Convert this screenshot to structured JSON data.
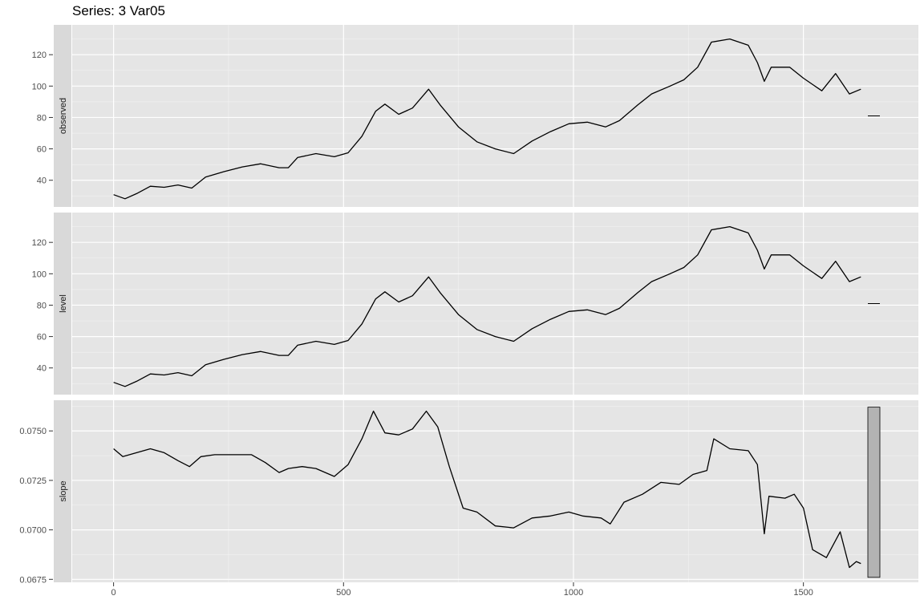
{
  "page_title": "Series: 3 Var05",
  "chart_data": {
    "type": "line",
    "title": "Series: 3 Var05",
    "xlabel": "",
    "ylabel": "",
    "x_range": [
      -90,
      1750
    ],
    "x_ticks": [
      0,
      500,
      1000,
      1500
    ],
    "x_tick_labels": [
      "0",
      "500",
      "1000",
      "1500"
    ],
    "grid": true,
    "line_color": "#000000",
    "panel_background": "#e5e5e5",
    "strip_background": "#d9d9d9",
    "panels": [
      {
        "name": "observed",
        "strip_label": "observed",
        "ylim": [
          23,
          139
        ],
        "y_ticks": [
          40,
          60,
          80,
          100,
          120
        ],
        "y_tick_labels": [
          "40",
          "60",
          "80",
          "100",
          "120"
        ],
        "series_points": [
          [
            0,
            30.8
          ],
          [
            25,
            28.2
          ],
          [
            50,
            31.5
          ],
          [
            80,
            36.2
          ],
          [
            110,
            35.5
          ],
          [
            140,
            37
          ],
          [
            170,
            35
          ],
          [
            200,
            42
          ],
          [
            240,
            45.5
          ],
          [
            280,
            48.5
          ],
          [
            320,
            50.5
          ],
          [
            360,
            48
          ],
          [
            380,
            48
          ],
          [
            400,
            54.5
          ],
          [
            440,
            57
          ],
          [
            480,
            55
          ],
          [
            510,
            57.5
          ],
          [
            540,
            68
          ],
          [
            570,
            84
          ],
          [
            590,
            88.5
          ],
          [
            620,
            82
          ],
          [
            650,
            86
          ],
          [
            685,
            98
          ],
          [
            710,
            88
          ],
          [
            750,
            74
          ],
          [
            790,
            64.5
          ],
          [
            830,
            60
          ],
          [
            870,
            57
          ],
          [
            910,
            65
          ],
          [
            950,
            71
          ],
          [
            990,
            76
          ],
          [
            1030,
            77
          ],
          [
            1070,
            74
          ],
          [
            1100,
            78
          ],
          [
            1140,
            88
          ],
          [
            1170,
            95
          ],
          [
            1210,
            100
          ],
          [
            1240,
            104
          ],
          [
            1270,
            112
          ],
          [
            1300,
            128
          ],
          [
            1340,
            130
          ],
          [
            1380,
            126
          ],
          [
            1400,
            115
          ],
          [
            1415,
            103
          ],
          [
            1430,
            112
          ],
          [
            1470,
            112
          ],
          [
            1500,
            105
          ],
          [
            1540,
            97
          ],
          [
            1570,
            108
          ],
          [
            1600,
            95
          ],
          [
            1625,
            98
          ]
        ],
        "side_marker": {
          "kind": "line",
          "value": 81
        }
      },
      {
        "name": "level",
        "strip_label": "level",
        "ylim": [
          23,
          139
        ],
        "y_ticks": [
          40,
          60,
          80,
          100,
          120
        ],
        "y_tick_labels": [
          "40",
          "60",
          "80",
          "100",
          "120"
        ],
        "series_points": [
          [
            0,
            30.8
          ],
          [
            25,
            28.2
          ],
          [
            50,
            31.5
          ],
          [
            80,
            36.2
          ],
          [
            110,
            35.5
          ],
          [
            140,
            37
          ],
          [
            170,
            35
          ],
          [
            200,
            42
          ],
          [
            240,
            45.5
          ],
          [
            280,
            48.5
          ],
          [
            320,
            50.5
          ],
          [
            360,
            48
          ],
          [
            380,
            48
          ],
          [
            400,
            54.5
          ],
          [
            440,
            57
          ],
          [
            480,
            55
          ],
          [
            510,
            57.5
          ],
          [
            540,
            68
          ],
          [
            570,
            84
          ],
          [
            590,
            88.5
          ],
          [
            620,
            82
          ],
          [
            650,
            86
          ],
          [
            685,
            98
          ],
          [
            710,
            88
          ],
          [
            750,
            74
          ],
          [
            790,
            64.5
          ],
          [
            830,
            60
          ],
          [
            870,
            57
          ],
          [
            910,
            65
          ],
          [
            950,
            71
          ],
          [
            990,
            76
          ],
          [
            1030,
            77
          ],
          [
            1070,
            74
          ],
          [
            1100,
            78
          ],
          [
            1140,
            88
          ],
          [
            1170,
            95
          ],
          [
            1210,
            100
          ],
          [
            1240,
            104
          ],
          [
            1270,
            112
          ],
          [
            1300,
            128
          ],
          [
            1340,
            130
          ],
          [
            1380,
            126
          ],
          [
            1400,
            115
          ],
          [
            1415,
            103
          ],
          [
            1430,
            112
          ],
          [
            1470,
            112
          ],
          [
            1500,
            105
          ],
          [
            1540,
            97
          ],
          [
            1570,
            108
          ],
          [
            1600,
            95
          ],
          [
            1625,
            98
          ]
        ],
        "side_marker": {
          "kind": "line",
          "value": 81
        }
      },
      {
        "name": "slope",
        "strip_label": "slope",
        "ylim": [
          0.06735,
          0.07655
        ],
        "y_ticks": [
          0.0675,
          0.07,
          0.0725,
          0.075
        ],
        "y_tick_labels": [
          "0.0675",
          "0.0700",
          "0.0725",
          "0.0750"
        ],
        "series_points": [
          [
            0,
            0.0741
          ],
          [
            20,
            0.0737
          ],
          [
            50,
            0.0739
          ],
          [
            80,
            0.0741
          ],
          [
            110,
            0.0739
          ],
          [
            140,
            0.0735
          ],
          [
            165,
            0.0732
          ],
          [
            190,
            0.0737
          ],
          [
            220,
            0.0738
          ],
          [
            260,
            0.0738
          ],
          [
            300,
            0.0738
          ],
          [
            330,
            0.0734
          ],
          [
            360,
            0.0729
          ],
          [
            380,
            0.0731
          ],
          [
            410,
            0.0732
          ],
          [
            440,
            0.0731
          ],
          [
            480,
            0.0727
          ],
          [
            510,
            0.0733
          ],
          [
            540,
            0.0746
          ],
          [
            565,
            0.076
          ],
          [
            590,
            0.0749
          ],
          [
            620,
            0.0748
          ],
          [
            650,
            0.0751
          ],
          [
            680,
            0.076
          ],
          [
            705,
            0.0752
          ],
          [
            730,
            0.0732
          ],
          [
            760,
            0.0711
          ],
          [
            790,
            0.0709
          ],
          [
            830,
            0.0702
          ],
          [
            870,
            0.0701
          ],
          [
            910,
            0.0706
          ],
          [
            950,
            0.0707
          ],
          [
            990,
            0.0709
          ],
          [
            1020,
            0.0707
          ],
          [
            1060,
            0.0706
          ],
          [
            1080,
            0.0703
          ],
          [
            1110,
            0.0714
          ],
          [
            1150,
            0.0718
          ],
          [
            1190,
            0.0724
          ],
          [
            1230,
            0.0723
          ],
          [
            1260,
            0.0728
          ],
          [
            1290,
            0.073
          ],
          [
            1305,
            0.0746
          ],
          [
            1340,
            0.0741
          ],
          [
            1380,
            0.074
          ],
          [
            1400,
            0.0733
          ],
          [
            1415,
            0.0698
          ],
          [
            1425,
            0.0717
          ],
          [
            1460,
            0.0716
          ],
          [
            1480,
            0.0718
          ],
          [
            1500,
            0.0711
          ],
          [
            1520,
            0.069
          ],
          [
            1550,
            0.0686
          ],
          [
            1580,
            0.0699
          ],
          [
            1600,
            0.0681
          ],
          [
            1615,
            0.0684
          ],
          [
            1625,
            0.0683
          ]
        ],
        "side_marker": {
          "kind": "bar",
          "range": [
            0.0676,
            0.0762
          ]
        }
      }
    ]
  }
}
